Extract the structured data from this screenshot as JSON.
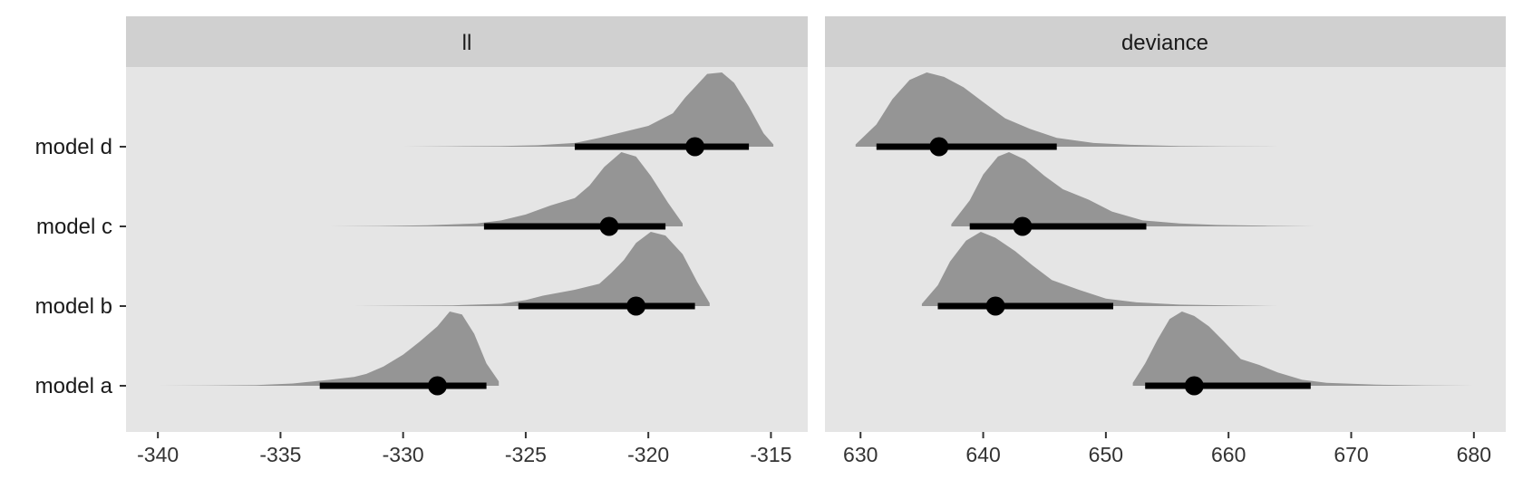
{
  "chart_data": {
    "type": "halfeye",
    "rows": [
      "model a",
      "model b",
      "model c",
      "model d"
    ],
    "colors": {
      "panel_bg": "#e5e5e5",
      "strip_bg": "#d0d0d0",
      "density": "#959595",
      "interval": "#000000"
    },
    "grid": false,
    "panels": [
      {
        "strip": "ll",
        "xlim": [
          -341.3,
          -313.5
        ],
        "ticks": [
          -340,
          -335,
          -330,
          -325,
          -320,
          -315
        ],
        "tick_labels": [
          "-340",
          "-335",
          "-330",
          "-325",
          "-320",
          "-315"
        ],
        "series": [
          {
            "name": "model a",
            "point": -328.6,
            "interval": [
              -333.4,
              -326.6
            ],
            "range": [
              -340,
              -326.1
            ],
            "peak": -328.1,
            "density": [
              [
                -340,
                0
              ],
              [
                -338,
                0.004
              ],
              [
                -336,
                0.01
              ],
              [
                -334.5,
                0.03
              ],
              [
                -333,
                0.08
              ],
              [
                -332,
                0.12
              ],
              [
                -331.5,
                0.16
              ],
              [
                -330.8,
                0.26
              ],
              [
                -330,
                0.42
              ],
              [
                -329.3,
                0.6
              ],
              [
                -328.6,
                0.8
              ],
              [
                -328.1,
                1.0
              ],
              [
                -327.6,
                0.96
              ],
              [
                -327.1,
                0.7
              ],
              [
                -326.6,
                0.3
              ],
              [
                -326.1,
                0.06
              ]
            ]
          },
          {
            "name": "model b",
            "point": -320.5,
            "interval": [
              -325.3,
              -318.1
            ],
            "range": [
              -332,
              -317.5
            ],
            "peak": -319.9,
            "density": [
              [
                -332,
                0
              ],
              [
                -330,
                0.005
              ],
              [
                -328,
                0.01
              ],
              [
                -326,
                0.03
              ],
              [
                -325,
                0.08
              ],
              [
                -324.3,
                0.14
              ],
              [
                -323,
                0.22
              ],
              [
                -322,
                0.3
              ],
              [
                -321.5,
                0.45
              ],
              [
                -321,
                0.62
              ],
              [
                -320.5,
                0.85
              ],
              [
                -319.9,
                1.0
              ],
              [
                -319.3,
                0.95
              ],
              [
                -318.6,
                0.7
              ],
              [
                -318,
                0.32
              ],
              [
                -317.5,
                0.04
              ]
            ]
          },
          {
            "name": "model c",
            "point": -321.6,
            "interval": [
              -326.7,
              -319.3
            ],
            "range": [
              -333,
              -318.6
            ],
            "peak": -321.1,
            "density": [
              [
                -333,
                0
              ],
              [
                -331,
                0.005
              ],
              [
                -329,
                0.015
              ],
              [
                -327,
                0.04
              ],
              [
                -326,
                0.08
              ],
              [
                -325,
                0.16
              ],
              [
                -324,
                0.28
              ],
              [
                -323,
                0.38
              ],
              [
                -322.4,
                0.55
              ],
              [
                -321.8,
                0.8
              ],
              [
                -321.1,
                1.0
              ],
              [
                -320.5,
                0.94
              ],
              [
                -319.9,
                0.68
              ],
              [
                -319.2,
                0.32
              ],
              [
                -318.6,
                0.04
              ]
            ]
          },
          {
            "name": "model d",
            "point": -318.1,
            "interval": [
              -323.0,
              -315.9
            ],
            "range": [
              -330,
              -314.9
            ],
            "peak": -317.6,
            "density": [
              [
                -330,
                0
              ],
              [
                -328,
                0.005
              ],
              [
                -326,
                0.01
              ],
              [
                -324.5,
                0.02
              ],
              [
                -323,
                0.05
              ],
              [
                -322,
                0.12
              ],
              [
                -321,
                0.2
              ],
              [
                -320,
                0.28
              ],
              [
                -319,
                0.45
              ],
              [
                -318.5,
                0.66
              ],
              [
                -317.6,
                0.98
              ],
              [
                -317,
                1.0
              ],
              [
                -316.5,
                0.86
              ],
              [
                -315.9,
                0.54
              ],
              [
                -315.3,
                0.18
              ],
              [
                -314.9,
                0.03
              ]
            ]
          }
        ]
      },
      {
        "strip": "deviance",
        "xlim": [
          627.1,
          682.6
        ],
        "ticks": [
          630,
          640,
          650,
          660,
          670,
          680
        ],
        "tick_labels": [
          "630",
          "640",
          "650",
          "660",
          "670",
          "680"
        ],
        "series": [
          {
            "name": "model a",
            "point": 657.2,
            "interval": [
              653.2,
              666.7
            ],
            "range": [
              652.2,
              680
            ],
            "peak": 656.2,
            "density": [
              [
                652.2,
                0.04
              ],
              [
                653.2,
                0.3
              ],
              [
                654.2,
                0.62
              ],
              [
                655.2,
                0.9
              ],
              [
                656.2,
                1.0
              ],
              [
                657.2,
                0.94
              ],
              [
                658.4,
                0.8
              ],
              [
                659.6,
                0.6
              ],
              [
                661,
                0.36
              ],
              [
                662.5,
                0.28
              ],
              [
                664,
                0.18
              ],
              [
                666,
                0.08
              ],
              [
                668,
                0.04
              ],
              [
                672,
                0.015
              ],
              [
                676,
                0.005
              ],
              [
                680,
                0
              ]
            ]
          },
          {
            "name": "model b",
            "point": 641.0,
            "interval": [
              636.3,
              650.6
            ],
            "range": [
              635.0,
              664
            ],
            "peak": 639.8,
            "density": [
              [
                635,
                0.03
              ],
              [
                636.3,
                0.28
              ],
              [
                637.3,
                0.6
              ],
              [
                638.6,
                0.88
              ],
              [
                639.8,
                1.0
              ],
              [
                641,
                0.92
              ],
              [
                642.6,
                0.74
              ],
              [
                644,
                0.55
              ],
              [
                645.6,
                0.35
              ],
              [
                647.8,
                0.22
              ],
              [
                650,
                0.1
              ],
              [
                652.5,
                0.05
              ],
              [
                656,
                0.02
              ],
              [
                660,
                0.008
              ],
              [
                664,
                0
              ]
            ]
          },
          {
            "name": "model c",
            "point": 643.2,
            "interval": [
              638.9,
              653.3
            ],
            "range": [
              637.4,
              667
            ],
            "peak": 642.1,
            "density": [
              [
                637.4,
                0.03
              ],
              [
                638.9,
                0.35
              ],
              [
                640,
                0.7
              ],
              [
                641.2,
                0.94
              ],
              [
                642.1,
                1.0
              ],
              [
                643.4,
                0.9
              ],
              [
                645,
                0.68
              ],
              [
                646.5,
                0.5
              ],
              [
                648.6,
                0.36
              ],
              [
                650.5,
                0.2
              ],
              [
                653,
                0.08
              ],
              [
                656,
                0.04
              ],
              [
                659,
                0.02
              ],
              [
                663,
                0.008
              ],
              [
                667,
                0
              ]
            ]
          },
          {
            "name": "model d",
            "point": 636.4,
            "interval": [
              631.3,
              646.0
            ],
            "range": [
              629.6,
              664
            ],
            "peak": 635.4,
            "density": [
              [
                629.6,
                0.03
              ],
              [
                631.3,
                0.3
              ],
              [
                632.6,
                0.64
              ],
              [
                634,
                0.9
              ],
              [
                635.4,
                1.0
              ],
              [
                636.8,
                0.94
              ],
              [
                638.4,
                0.8
              ],
              [
                640,
                0.6
              ],
              [
                641.8,
                0.38
              ],
              [
                643.8,
                0.24
              ],
              [
                646,
                0.12
              ],
              [
                649,
                0.05
              ],
              [
                652,
                0.025
              ],
              [
                656,
                0.01
              ],
              [
                660,
                0.004
              ],
              [
                664,
                0
              ]
            ]
          }
        ]
      }
    ]
  }
}
